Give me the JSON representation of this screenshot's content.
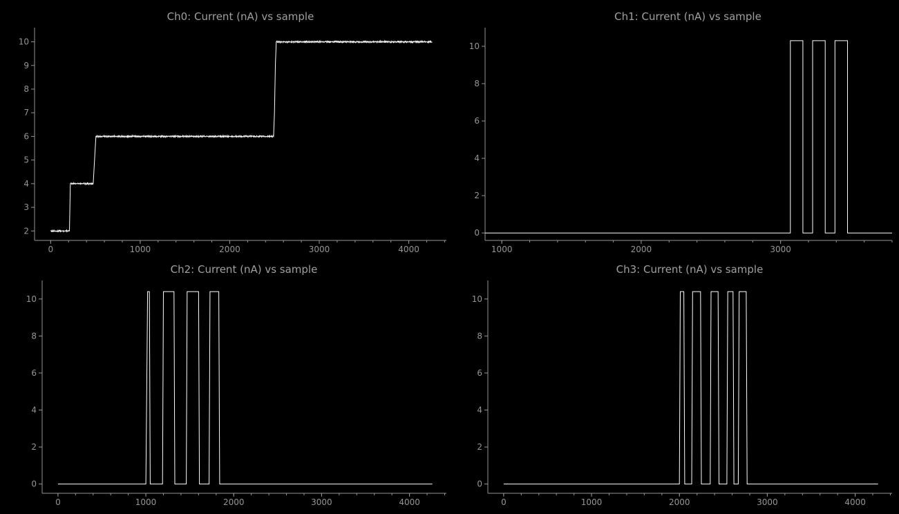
{
  "colors": {
    "background": "#000000",
    "axis": "#969696",
    "trace": "#ffffff",
    "title": "#a0a0a0"
  },
  "chart_data": [
    {
      "type": "line",
      "title": "Ch0: Current (nA) vs sample",
      "xlabel": "",
      "ylabel": "",
      "xlim": [
        -180,
        4420
      ],
      "ylim": [
        1.6,
        10.6
      ],
      "xticks": [
        0,
        1000,
        2000,
        3000,
        4000
      ],
      "yticks": [
        2,
        3,
        4,
        5,
        6,
        7,
        8,
        9,
        10
      ],
      "noise": 0.02,
      "series": [
        {
          "x": [
            0,
            210,
            220,
            475,
            490,
            505,
            2490,
            2500,
            2510,
            2520,
            4260
          ],
          "y": [
            2,
            2,
            4,
            4,
            5,
            6,
            6,
            7,
            9,
            10,
            10
          ]
        }
      ]
    },
    {
      "type": "line",
      "title": "Ch1: Current (nA) vs sample",
      "xlabel": "",
      "ylabel": "",
      "xlim": [
        880,
        3800
      ],
      "ylim": [
        -0.4,
        11
      ],
      "xticks": [
        1000,
        2000,
        3000
      ],
      "yticks": [
        0,
        2,
        4,
        6,
        8,
        10
      ],
      "noise": 0,
      "series": [
        {
          "x": [
            880,
            3070,
            3070,
            3160,
            3160,
            3230,
            3230,
            3320,
            3320,
            3390,
            3390,
            3480,
            3480,
            3800
          ],
          "y": [
            0,
            0,
            10.3,
            10.3,
            0,
            0,
            10.3,
            10.3,
            0,
            0,
            10.3,
            10.3,
            0,
            0
          ]
        }
      ]
    },
    {
      "type": "line",
      "title": "Ch2: Current (nA) vs sample",
      "xlabel": "",
      "ylabel": "",
      "xlim": [
        -180,
        4420
      ],
      "ylim": [
        -0.5,
        11
      ],
      "xticks": [
        0,
        1000,
        2000,
        3000,
        4000
      ],
      "yticks": [
        0,
        2,
        4,
        6,
        8,
        10
      ],
      "noise": 0,
      "series": [
        {
          "x": [
            0,
            1000,
            1020,
            1040,
            1050,
            1190,
            1200,
            1210,
            1320,
            1330,
            1340,
            1460,
            1470,
            1480,
            1600,
            1610,
            1620,
            1720,
            1730,
            1740,
            1830,
            1840,
            1850,
            4260
          ],
          "y": [
            0,
            0,
            10.4,
            10.4,
            0,
            0,
            10.4,
            10.4,
            10.4,
            0,
            0,
            0,
            10.4,
            10.4,
            10.4,
            0,
            0,
            0,
            10.4,
            10.4,
            10.4,
            0,
            0,
            0
          ]
        }
      ]
    },
    {
      "type": "line",
      "title": "Ch3: Current (nA) vs sample",
      "xlabel": "",
      "ylabel": "",
      "xlim": [
        -180,
        4420
      ],
      "ylim": [
        -0.5,
        11
      ],
      "xticks": [
        0,
        1000,
        2000,
        3000,
        4000
      ],
      "yticks": [
        0,
        2,
        4,
        6,
        8,
        10
      ],
      "noise": 0,
      "series": [
        {
          "x": [
            0,
            2000,
            2010,
            2050,
            2060,
            2140,
            2150,
            2240,
            2250,
            2350,
            2360,
            2440,
            2450,
            2540,
            2550,
            2610,
            2620,
            2670,
            2680,
            2760,
            2770,
            2800,
            2810,
            4260
          ],
          "y": [
            0,
            0,
            10.4,
            10.4,
            0,
            0,
            10.4,
            10.4,
            0,
            0,
            10.4,
            10.4,
            0,
            0,
            10.4,
            10.4,
            0,
            0,
            10.4,
            10.4,
            0,
            0,
            0,
            0
          ]
        }
      ]
    }
  ]
}
